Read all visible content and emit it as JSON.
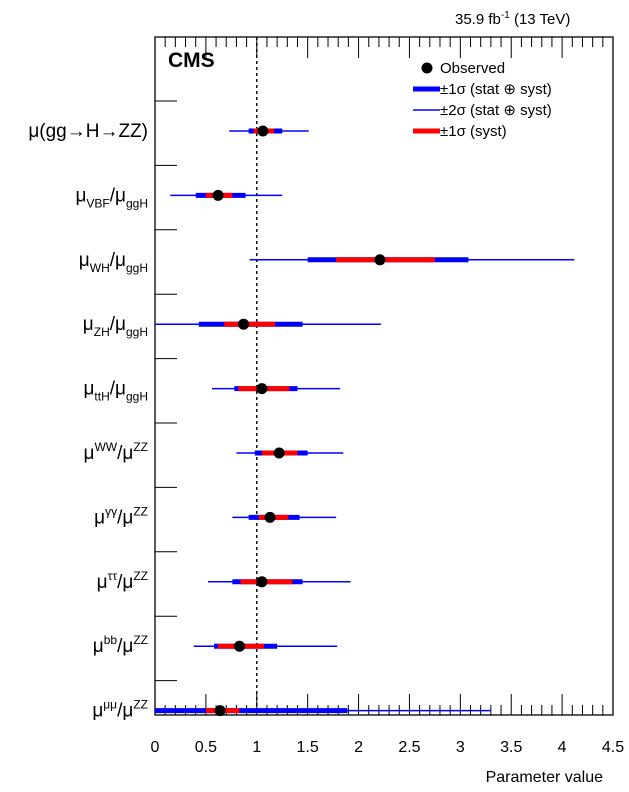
{
  "lumi": {
    "base": "35.9 fb",
    "sup": "-1",
    "rest": " (13 TeV)"
  },
  "chart_data": {
    "type": "scatter",
    "title": "CMS",
    "xlabel": "Parameter value",
    "ylabel": "",
    "xlim": [
      0,
      4.5
    ],
    "x_ticks": [
      "0",
      "0.5",
      "1",
      "1.5",
      "2",
      "2.5",
      "3",
      "3.5",
      "4",
      "4.5"
    ],
    "reference_line": 1,
    "legend_position": "top-right",
    "legend": [
      {
        "label": "Observed",
        "style": "marker"
      },
      {
        "label": "±1σ (stat ⊕ syst)",
        "style": "thick",
        "color": "#0000ff"
      },
      {
        "label": "±2σ (stat ⊕ syst)",
        "style": "thin",
        "color": "#0000ff"
      },
      {
        "label": "±1σ (syst)",
        "style": "thick",
        "color": "#ff0000"
      }
    ],
    "colors": {
      "total": "#0000ff",
      "syst": "#ff0000",
      "marker": "#000000"
    },
    "parameters": [
      {
        "label": [
          {
            "t": "μ(gg→H→ZZ)"
          }
        ],
        "value": 1.06,
        "one_sigma": [
          0.92,
          1.25
        ],
        "two_sigma": [
          0.73,
          1.51
        ],
        "syst": [
          0.97,
          1.17
        ]
      },
      {
        "label": [
          {
            "t": "μ"
          },
          {
            "t": "VBF",
            "s": "sub"
          },
          {
            "t": "/μ"
          },
          {
            "t": "ggH",
            "s": "sub"
          }
        ],
        "value": 0.62,
        "one_sigma": [
          0.4,
          0.89
        ],
        "two_sigma": [
          0.15,
          1.25
        ],
        "syst": [
          0.5,
          0.76
        ]
      },
      {
        "label": [
          {
            "t": "μ"
          },
          {
            "t": "WH",
            "s": "sub"
          },
          {
            "t": "/μ"
          },
          {
            "t": "ggH",
            "s": "sub"
          }
        ],
        "value": 2.21,
        "one_sigma": [
          1.5,
          3.08
        ],
        "two_sigma": [
          0.93,
          4.12
        ],
        "syst": [
          1.78,
          2.75
        ]
      },
      {
        "label": [
          {
            "t": "μ"
          },
          {
            "t": "ZH",
            "s": "sub"
          },
          {
            "t": "/μ"
          },
          {
            "t": "ggH",
            "s": "sub"
          }
        ],
        "value": 0.87,
        "one_sigma": [
          0.43,
          1.45
        ],
        "two_sigma": [
          0.0,
          2.22
        ],
        "syst": [
          0.68,
          1.18
        ]
      },
      {
        "label": [
          {
            "t": "μ"
          },
          {
            "t": "ttH",
            "s": "sub"
          },
          {
            "t": "/μ"
          },
          {
            "t": "ggH",
            "s": "sub"
          }
        ],
        "value": 1.05,
        "one_sigma": [
          0.78,
          1.4
        ],
        "two_sigma": [
          0.56,
          1.82
        ],
        "syst": [
          0.82,
          1.32
        ]
      },
      {
        "label": [
          {
            "t": "μ"
          },
          {
            "t": "WW",
            "s": "sup"
          },
          {
            "t": "/μ"
          },
          {
            "t": "ZZ",
            "s": "sup"
          }
        ],
        "value": 1.22,
        "one_sigma": [
          0.98,
          1.5
        ],
        "two_sigma": [
          0.8,
          1.85
        ],
        "syst": [
          1.05,
          1.4
        ]
      },
      {
        "label": [
          {
            "t": "μ"
          },
          {
            "t": "γγ",
            "s": "sup"
          },
          {
            "t": "/μ"
          },
          {
            "t": "ZZ",
            "s": "sup"
          }
        ],
        "value": 1.13,
        "one_sigma": [
          0.92,
          1.42
        ],
        "two_sigma": [
          0.76,
          1.78
        ],
        "syst": [
          1.02,
          1.31
        ]
      },
      {
        "label": [
          {
            "t": "μ"
          },
          {
            "t": "ττ",
            "s": "sup"
          },
          {
            "t": "/μ"
          },
          {
            "t": "ZZ",
            "s": "sup"
          }
        ],
        "value": 1.05,
        "one_sigma": [
          0.76,
          1.45
        ],
        "two_sigma": [
          0.52,
          1.92
        ],
        "syst": [
          0.84,
          1.35
        ]
      },
      {
        "label": [
          {
            "t": "μ"
          },
          {
            "t": "bb",
            "s": "sup"
          },
          {
            "t": "/μ"
          },
          {
            "t": "ZZ",
            "s": "sup"
          }
        ],
        "value": 0.83,
        "one_sigma": [
          0.58,
          1.2
        ],
        "two_sigma": [
          0.38,
          1.79
        ],
        "syst": [
          0.62,
          1.07
        ]
      },
      {
        "label": [
          {
            "t": "μ"
          },
          {
            "t": "μμ",
            "s": "sup"
          },
          {
            "t": "/μ"
          },
          {
            "t": "ZZ",
            "s": "sup"
          }
        ],
        "value": 0.64,
        "one_sigma": [
          0.0,
          1.89
        ],
        "two_sigma": [
          0.0,
          3.3
        ],
        "syst": [
          0.5,
          0.83
        ]
      }
    ]
  }
}
